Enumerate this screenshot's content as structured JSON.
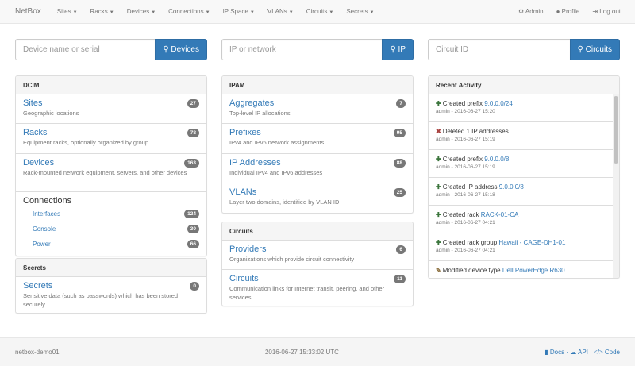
{
  "nav": {
    "brand": "NetBox",
    "menus": [
      "Sites",
      "Racks",
      "Devices",
      "Connections",
      "IP Space",
      "VLANs",
      "Circuits",
      "Secrets"
    ],
    "admin": "Admin",
    "profile": "Profile",
    "logout": "Log out"
  },
  "search": [
    {
      "placeholder": "Device name or serial",
      "button": "Devices"
    },
    {
      "placeholder": "IP or network",
      "button": "IP"
    },
    {
      "placeholder": "Circuit ID",
      "button": "Circuits"
    }
  ],
  "dcim": {
    "title": "DCIM",
    "items": [
      {
        "label": "Sites",
        "desc": "Geographic locations",
        "count": "27"
      },
      {
        "label": "Racks",
        "desc": "Equipment racks, optionally organized by group",
        "count": "78"
      },
      {
        "label": "Devices",
        "desc": "Rack-mounted network equipment, servers, and other devices",
        "count": "163"
      }
    ],
    "connections": {
      "label": "Connections",
      "items": [
        {
          "label": "Interfaces",
          "count": "124"
        },
        {
          "label": "Console",
          "count": "30"
        },
        {
          "label": "Power",
          "count": "66"
        }
      ]
    }
  },
  "secrets": {
    "title": "Secrets",
    "items": [
      {
        "label": "Secrets",
        "desc": "Sensitive data (such as passwords) which has been stored securely",
        "count": "0"
      }
    ]
  },
  "ipam": {
    "title": "IPAM",
    "items": [
      {
        "label": "Aggregates",
        "desc": "Top-level IP allocations",
        "count": "7"
      },
      {
        "label": "Prefixes",
        "desc": "IPv4 and IPv6 network assignments",
        "count": "95"
      },
      {
        "label": "IP Addresses",
        "desc": "Individual IPv4 and IPv6 addresses",
        "count": "88"
      },
      {
        "label": "VLANs",
        "desc": "Layer two domains, identified by VLAN ID",
        "count": "25"
      }
    ]
  },
  "circuits": {
    "title": "Circuits",
    "items": [
      {
        "label": "Providers",
        "desc": "Organizations which provide circuit connectivity",
        "count": "6"
      },
      {
        "label": "Circuits",
        "desc": "Communication links for Internet transit, peering, and other services",
        "count": "11"
      }
    ]
  },
  "activity": {
    "title": "Recent Activity",
    "items": [
      {
        "icon": "plus",
        "action": "Created prefix",
        "link": "9.0.0.0/24",
        "meta": "admin - 2016-06-27 15:20"
      },
      {
        "icon": "remove",
        "action": "Deleted 1 IP addresses",
        "link": "",
        "meta": "admin - 2016-06-27 15:19"
      },
      {
        "icon": "plus",
        "action": "Created prefix",
        "link": "9.0.0.0/8",
        "meta": "admin - 2016-06-27 15:19"
      },
      {
        "icon": "plus",
        "action": "Created IP address",
        "link": "9.0.0.0/8",
        "meta": "admin - 2016-06-27 15:18"
      },
      {
        "icon": "plus",
        "action": "Created rack",
        "link": "RACK-01-CA",
        "meta": "admin - 2016-06-27 04:21"
      },
      {
        "icon": "plus",
        "action": "Created rack group",
        "link": "Hawaii - CAGE-DH1-01",
        "meta": "admin - 2016-06-27 04:21"
      },
      {
        "icon": "pencil",
        "action": "Modified device type",
        "link": "Dell PowerEdge R630",
        "meta": ""
      }
    ]
  },
  "footer": {
    "hostname": "netbox-demo01",
    "time": "2016-06-27 15:33:02 UTC",
    "docs": "Docs",
    "api": "API",
    "code": "Code"
  },
  "colors": {
    "primary": "#337ab7",
    "plus": "#3c763d",
    "remove": "#a94442",
    "pencil": "#8a6d3b"
  }
}
